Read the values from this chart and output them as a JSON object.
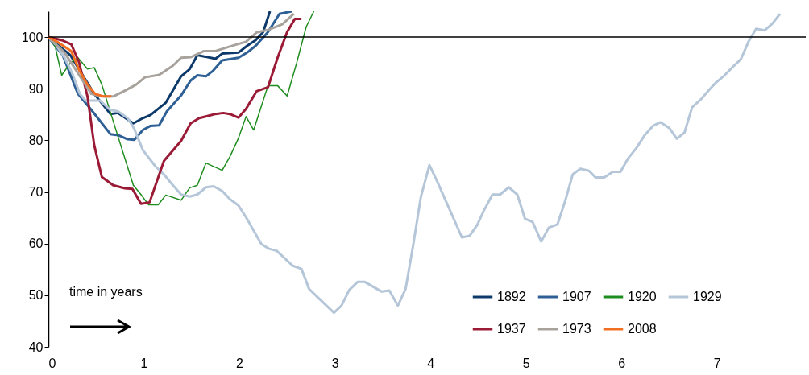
{
  "chart_data": {
    "type": "line",
    "xlim": [
      0,
      7.93
    ],
    "ylim": [
      40,
      105
    ],
    "xticks": [
      0,
      1,
      2,
      3,
      4,
      5,
      6,
      7
    ],
    "yticks": [
      40,
      50,
      60,
      70,
      80,
      90,
      100
    ],
    "grid": false,
    "legend": "bottom right",
    "line_style": "solid",
    "marker": "none",
    "ref_lines": [
      {
        "axis": "y",
        "value": 100,
        "label": null,
        "color": "#000000"
      }
    ],
    "annotations": [
      "time in years"
    ],
    "series": [
      {
        "name": "1892",
        "color": "#0d3a6b",
        "x": [
          0,
          0.23,
          0.48,
          0.65,
          0.73,
          0.89,
          0.99,
          1.07,
          1.23,
          1.39,
          1.48,
          1.56,
          1.75,
          1.82,
          1.99,
          2.08,
          2.17,
          2.25,
          2.32
        ],
        "values": [
          100,
          96.5,
          89,
          85.1,
          85.3,
          83.3,
          84.3,
          84.9,
          87.3,
          92.4,
          93.8,
          96.5,
          95.8,
          96.8,
          97.0,
          98.3,
          99.4,
          101,
          105
        ]
      },
      {
        "name": "1907",
        "color": "#2e6096",
        "x": [
          0,
          0.15,
          0.31,
          0.45,
          0.65,
          0.73,
          0.83,
          0.9,
          0.99,
          1.07,
          1.16,
          1.24,
          1.39,
          1.49,
          1.56,
          1.65,
          1.72,
          1.82,
          1.99,
          2.08,
          2.17,
          2.3,
          2.42,
          2.55
        ],
        "values": [
          100,
          96.5,
          89,
          85.9,
          81.2,
          81.0,
          80.2,
          80.1,
          82.0,
          82.8,
          82.9,
          85.6,
          88.7,
          91.6,
          92.6,
          92.4,
          93.4,
          95.5,
          96.0,
          97.0,
          98.3,
          101,
          104.5,
          105
        ]
      },
      {
        "name": "1920",
        "color": "#1e8c1e",
        "x": [
          0,
          0.07,
          0.14,
          0.23,
          0.31,
          0.41,
          0.48,
          0.56,
          0.73,
          0.89,
          0.97,
          1.05,
          1.15,
          1.23,
          1.39,
          1.48,
          1.56,
          1.65,
          1.82,
          1.9,
          1.99,
          2.07,
          2.15,
          2.2,
          2.3,
          2.4,
          2.5,
          2.6,
          2.7,
          2.78
        ],
        "values": [
          100,
          98.3,
          92.6,
          95.0,
          96.0,
          93.8,
          94.1,
          90.8,
          80.7,
          71.3,
          69.5,
          67.5,
          67.5,
          69.4,
          68.4,
          70.8,
          71.3,
          75.6,
          74.2,
          76.8,
          80.4,
          84.6,
          82.0,
          84.9,
          90.6,
          90.6,
          88.6,
          95,
          102,
          105
        ]
      },
      {
        "name": "1929",
        "color": "#b4c6d8",
        "x": [
          0,
          0.08,
          0.17,
          0.25,
          0.33,
          0.39,
          0.54,
          0.65,
          0.73,
          0.83,
          0.9,
          0.99,
          1.12,
          1.21,
          1.29,
          1.39,
          1.48,
          1.56,
          1.65,
          1.73,
          1.82,
          1.9,
          1.99,
          2.07,
          2.23,
          2.31,
          2.39,
          2.56,
          2.65,
          2.73,
          2.99,
          3.07,
          3.15,
          3.24,
          3.31,
          3.49,
          3.57,
          3.66,
          3.74,
          3.82,
          3.9,
          3.99,
          4.07,
          4.33,
          4.41,
          4.49,
          4.56,
          4.65,
          4.73,
          4.82,
          4.91,
          4.99,
          5.07,
          5.16,
          5.24,
          5.33,
          5.41,
          5.49,
          5.57,
          5.66,
          5.73,
          5.82,
          5.91,
          5.99,
          6.07,
          6.16,
          6.24,
          6.33,
          6.41,
          6.5,
          6.58,
          6.66,
          6.74,
          6.83,
          6.91,
          6.99,
          7.08,
          7.17,
          7.25,
          7.33,
          7.41,
          7.5,
          7.58,
          7.66
        ],
        "values": [
          100,
          98.5,
          96,
          93,
          89,
          87.7,
          87.7,
          85.9,
          85.6,
          84.3,
          82.2,
          78.1,
          75,
          73.4,
          71.6,
          69.5,
          69.1,
          69.5,
          70.9,
          71.1,
          70.2,
          68.6,
          67.4,
          65.1,
          59.9,
          59.0,
          58.6,
          55.7,
          55.1,
          51.2,
          46.6,
          48.0,
          51.0,
          52.6,
          52.6,
          50.7,
          50.9,
          48.0,
          51.2,
          59.7,
          69.0,
          75.2,
          72.1,
          61.2,
          61.5,
          63.6,
          66.4,
          69.5,
          69.5,
          70.9,
          69.5,
          64.8,
          64.2,
          60.4,
          63.1,
          63.7,
          68.2,
          73.4,
          74.5,
          74.1,
          72.8,
          72.8,
          73.9,
          73.9,
          76.5,
          78.6,
          80.9,
          82.8,
          83.5,
          82.4,
          80.3,
          81.5,
          86.4,
          87.9,
          89.6,
          91.2,
          92.6,
          94.3,
          95.7,
          99.1,
          101.6,
          101.3,
          102.6,
          104.5
        ]
      },
      {
        "name": "1937",
        "color": "#9b1b36",
        "x": [
          0,
          0.14,
          0.24,
          0.32,
          0.41,
          0.48,
          0.56,
          0.68,
          0.8,
          0.88,
          0.97,
          1.06,
          1.21,
          1.39,
          1.49,
          1.58,
          1.75,
          1.83,
          1.9,
          1.99,
          2.07,
          2.18,
          2.3,
          2.4,
          2.5,
          2.58,
          2.65
        ],
        "values": [
          100,
          99.4,
          98.6,
          95.2,
          88.5,
          79.1,
          72.9,
          71.3,
          70.7,
          70.6,
          67.7,
          68,
          76.0,
          79.9,
          83.3,
          84.3,
          85.1,
          85.3,
          85.1,
          84.4,
          86.1,
          89.5,
          90.3,
          96,
          101,
          103.5,
          103.5
        ]
      },
      {
        "name": "1973",
        "color": "#a8a29c",
        "x": [
          0,
          0.17,
          0.31,
          0.45,
          0.55,
          0.68,
          0.79,
          0.92,
          1.01,
          1.16,
          1.3,
          1.39,
          1.49,
          1.63,
          1.75,
          1.94,
          2.07,
          2.18,
          2.3,
          2.45,
          2.57
        ],
        "values": [
          100,
          97,
          93,
          89,
          88.5,
          88.5,
          89.5,
          90.8,
          92.2,
          92.7,
          94.4,
          96.0,
          96.1,
          97.3,
          97.3,
          98.4,
          99.1,
          100.9,
          101.4,
          102.5,
          104.5
        ]
      },
      {
        "name": "2008",
        "color": "#f26f21",
        "x": [
          0,
          0.1,
          0.24,
          0.32,
          0.41,
          0.49,
          0.58,
          0.66
        ],
        "values": [
          100,
          99,
          97.3,
          93.7,
          90.8,
          89.0,
          88.5,
          88.5
        ]
      }
    ]
  }
}
